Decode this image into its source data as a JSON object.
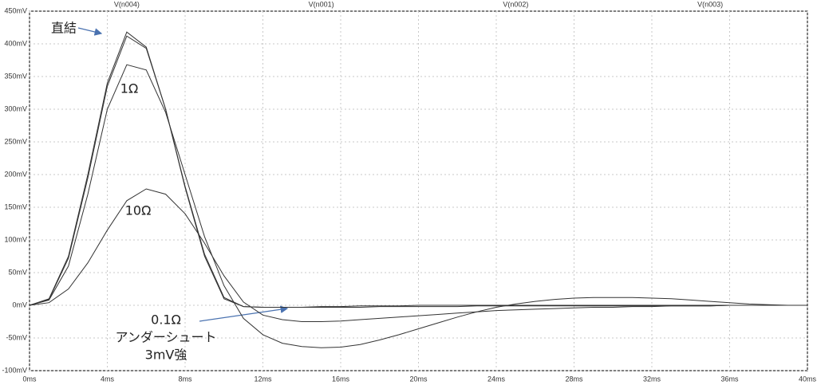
{
  "chart_data": {
    "type": "line",
    "x": [
      0,
      1,
      2,
      3,
      4,
      5,
      6,
      7,
      8,
      9,
      10,
      11,
      12,
      13,
      14,
      15,
      16,
      17,
      18,
      19,
      20,
      21,
      22,
      23,
      24,
      25,
      26,
      27,
      28,
      29,
      30,
      31,
      32,
      33,
      34,
      35,
      36,
      37,
      38,
      39,
      40
    ],
    "series": [
      {
        "name": "V(n004)",
        "color": "#333333",
        "values": [
          0,
          10,
          75,
          200,
          340,
          418,
          395,
          300,
          180,
          75,
          10,
          -2,
          -3,
          -3,
          -3,
          -2,
          -2,
          -1,
          -1,
          -1,
          0,
          0,
          0,
          0,
          0,
          0,
          0,
          0,
          0,
          0,
          0,
          0,
          0,
          0,
          0,
          0,
          0,
          0,
          0,
          0,
          0
        ]
      },
      {
        "name": "V(n001)",
        "color": "#333333",
        "values": [
          0,
          9,
          72,
          195,
          335,
          412,
          393,
          300,
          182,
          78,
          12,
          -2,
          -3,
          -3,
          -3,
          -3,
          -3,
          -3,
          -2,
          -2,
          -2,
          -2,
          -2,
          -1,
          -1,
          -1,
          -1,
          -1,
          -1,
          -1,
          -1,
          -1,
          -1,
          -1,
          -1,
          -1,
          0,
          0,
          0,
          0,
          0
        ]
      },
      {
        "name": "V(n002)",
        "color": "#333333",
        "values": [
          0,
          8,
          60,
          170,
          300,
          368,
          360,
          295,
          200,
          105,
          30,
          -20,
          -45,
          -58,
          -63,
          -65,
          -64,
          -60,
          -53,
          -45,
          -36,
          -27,
          -18,
          -10,
          -3,
          2,
          6,
          9,
          11,
          12,
          12,
          12,
          11,
          10,
          8,
          6,
          4,
          2,
          1,
          0,
          0
        ]
      },
      {
        "name": "V(n003)",
        "color": "#333333",
        "values": [
          0,
          4,
          25,
          65,
          115,
          160,
          178,
          170,
          140,
          95,
          45,
          5,
          -15,
          -22,
          -25,
          -25,
          -24,
          -22,
          -20,
          -18,
          -16,
          -14,
          -12,
          -10,
          -8,
          -7,
          -6,
          -5,
          -4,
          -3,
          -3,
          -2,
          -2,
          -1,
          -1,
          -1,
          0,
          0,
          0,
          0,
          0
        ]
      }
    ],
    "xlim": [
      0,
      40
    ],
    "xticks": [
      {
        "value": 0,
        "label": "0ms"
      },
      {
        "value": 4,
        "label": "4ms"
      },
      {
        "value": 8,
        "label": "8ms"
      },
      {
        "value": 12,
        "label": "12ms"
      },
      {
        "value": 16,
        "label": "16ms"
      },
      {
        "value": 20,
        "label": "20ms"
      },
      {
        "value": 24,
        "label": "24ms"
      },
      {
        "value": 28,
        "label": "28ms"
      },
      {
        "value": 32,
        "label": "32ms"
      },
      {
        "value": 36,
        "label": "36ms"
      },
      {
        "value": 40,
        "label": "40ms"
      }
    ],
    "ylim": [
      -100,
      450
    ],
    "yticks": [
      {
        "value": -100,
        "label": "-100mV"
      },
      {
        "value": -50,
        "label": "-50mV"
      },
      {
        "value": 0,
        "label": "0mV"
      },
      {
        "value": 50,
        "label": "50mV"
      },
      {
        "value": 100,
        "label": "100mV"
      },
      {
        "value": 150,
        "label": "150mV"
      },
      {
        "value": 200,
        "label": "200mV"
      },
      {
        "value": 250,
        "label": "250mV"
      },
      {
        "value": 300,
        "label": "300mV"
      },
      {
        "value": 350,
        "label": "350mV"
      },
      {
        "value": 400,
        "label": "400mV"
      },
      {
        "value": 450,
        "label": "450mV"
      }
    ],
    "grid": true,
    "annotations": [
      "直結",
      "1Ω",
      "10Ω",
      "0.1Ω",
      "アンダーシュート",
      "3mV強"
    ]
  }
}
